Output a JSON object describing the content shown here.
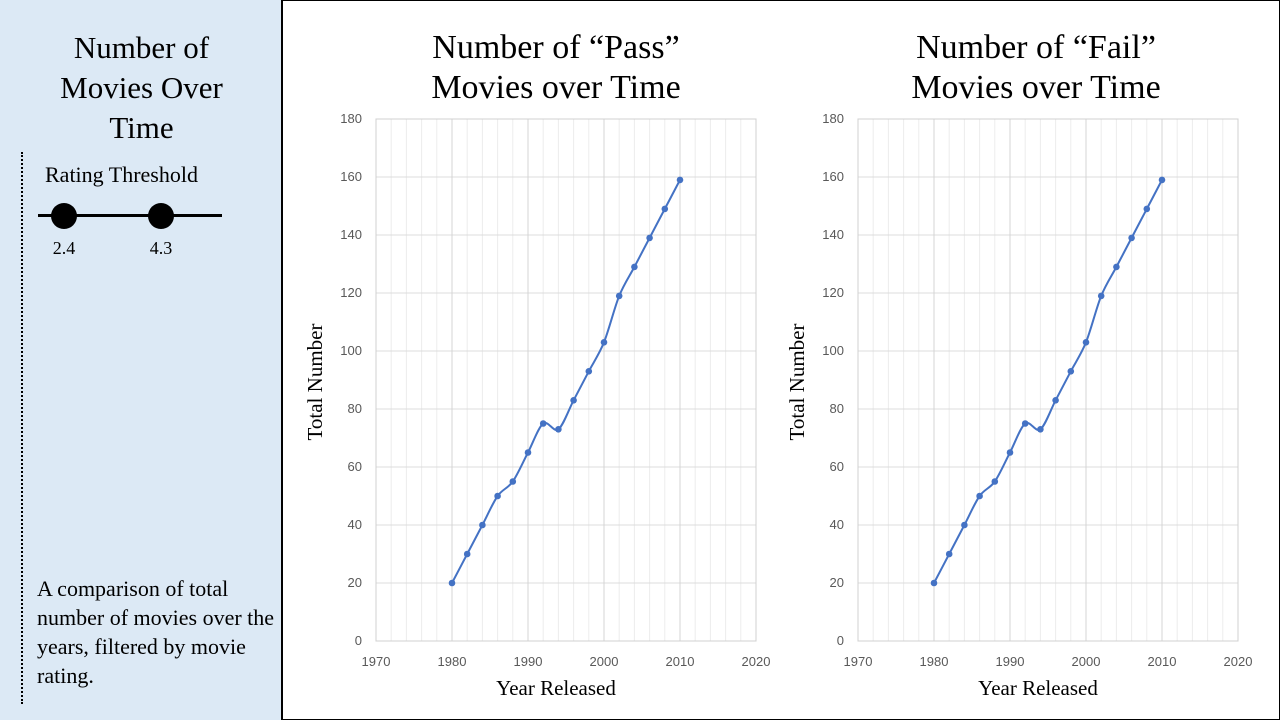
{
  "sidebar": {
    "title": "Number of\nMovies Over\nTime",
    "slider_label": "Rating Threshold",
    "slider_low": "2.4",
    "slider_high": "4.3",
    "description": "A comparison of total number of movies over the years, filtered by movie rating."
  },
  "chart_data": [
    {
      "type": "line",
      "title": "Number of “Pass”\nMovies over Time",
      "xlabel": "Year Released",
      "ylabel": "Total Number",
      "xlim": [
        1970,
        2020
      ],
      "ylim": [
        0,
        180
      ],
      "x_ticks": [
        1970,
        1980,
        1990,
        2000,
        2010,
        2020
      ],
      "y_ticks": [
        0,
        20,
        40,
        60,
        80,
        100,
        120,
        140,
        160,
        180
      ],
      "grid": true,
      "color": "#4472c4",
      "x": [
        1980,
        1982,
        1984,
        1986,
        1988,
        1990,
        1992,
        1994,
        1996,
        1998,
        2000,
        2002,
        2004,
        2006,
        2008,
        2010
      ],
      "y": [
        20,
        30,
        40,
        50,
        55,
        65,
        75,
        73,
        83,
        93,
        103,
        119,
        129,
        139,
        149,
        159
      ]
    },
    {
      "type": "line",
      "title": "Number of “Fail”\nMovies over Time",
      "xlabel": "Year Released",
      "ylabel": "Total Number",
      "xlim": [
        1970,
        2020
      ],
      "ylim": [
        0,
        180
      ],
      "x_ticks": [
        1970,
        1980,
        1990,
        2000,
        2010,
        2020
      ],
      "y_ticks": [
        0,
        20,
        40,
        60,
        80,
        100,
        120,
        140,
        160,
        180
      ],
      "grid": true,
      "color": "#4472c4",
      "x": [
        1980,
        1982,
        1984,
        1986,
        1988,
        1990,
        1992,
        1994,
        1996,
        1998,
        2000,
        2002,
        2004,
        2006,
        2008,
        2010
      ],
      "y": [
        20,
        30,
        40,
        50,
        55,
        65,
        75,
        73,
        83,
        93,
        103,
        119,
        129,
        139,
        149,
        159
      ]
    }
  ]
}
